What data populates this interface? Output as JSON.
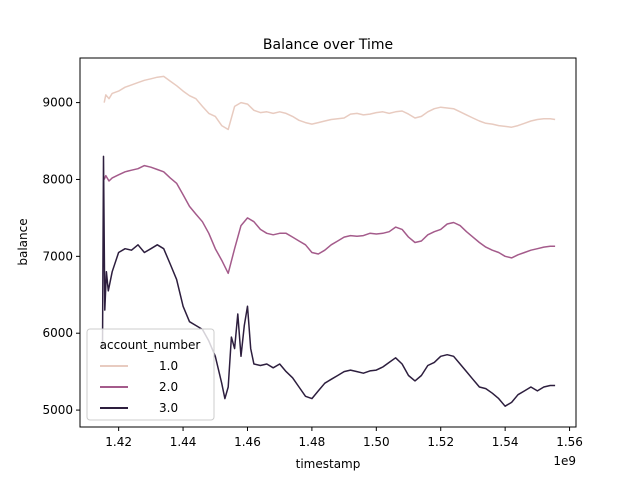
{
  "chart_data": {
    "type": "line",
    "title": "Balance over Time",
    "xlabel": "timestamp",
    "ylabel": "balance",
    "x_offset_text": "1e9",
    "xlim": [
      1.408,
      1.562
    ],
    "ylim": [
      4780,
      9580
    ],
    "x_ticks": [
      1.42,
      1.44,
      1.46,
      1.48,
      1.5,
      1.52,
      1.54,
      1.56
    ],
    "x_tick_labels": [
      "1.42",
      "1.44",
      "1.46",
      "1.48",
      "1.50",
      "1.52",
      "1.54",
      "1.56"
    ],
    "y_ticks": [
      5000,
      6000,
      7000,
      8000,
      9000
    ],
    "y_tick_labels": [
      "5000",
      "6000",
      "7000",
      "8000",
      "9000"
    ],
    "grid": false,
    "legend": {
      "title": "account_number",
      "position": "lower-left"
    },
    "series": [
      {
        "name": "1.0",
        "color": "#e8cbc0",
        "points": [
          [
            1.4155,
            9000
          ],
          [
            1.416,
            9100
          ],
          [
            1.417,
            9050
          ],
          [
            1.418,
            9120
          ],
          [
            1.42,
            9150
          ],
          [
            1.422,
            9200
          ],
          [
            1.424,
            9230
          ],
          [
            1.426,
            9260
          ],
          [
            1.428,
            9290
          ],
          [
            1.43,
            9310
          ],
          [
            1.432,
            9330
          ],
          [
            1.434,
            9340
          ],
          [
            1.436,
            9280
          ],
          [
            1.438,
            9220
          ],
          [
            1.44,
            9150
          ],
          [
            1.442,
            9090
          ],
          [
            1.444,
            9050
          ],
          [
            1.446,
            8950
          ],
          [
            1.448,
            8860
          ],
          [
            1.45,
            8820
          ],
          [
            1.452,
            8700
          ],
          [
            1.454,
            8650
          ],
          [
            1.456,
            8950
          ],
          [
            1.458,
            9000
          ],
          [
            1.46,
            8980
          ],
          [
            1.462,
            8900
          ],
          [
            1.464,
            8870
          ],
          [
            1.466,
            8880
          ],
          [
            1.468,
            8860
          ],
          [
            1.47,
            8880
          ],
          [
            1.472,
            8860
          ],
          [
            1.474,
            8820
          ],
          [
            1.476,
            8770
          ],
          [
            1.478,
            8740
          ],
          [
            1.48,
            8720
          ],
          [
            1.482,
            8740
          ],
          [
            1.484,
            8760
          ],
          [
            1.486,
            8780
          ],
          [
            1.488,
            8790
          ],
          [
            1.49,
            8800
          ],
          [
            1.492,
            8850
          ],
          [
            1.494,
            8860
          ],
          [
            1.496,
            8840
          ],
          [
            1.498,
            8850
          ],
          [
            1.5,
            8870
          ],
          [
            1.502,
            8880
          ],
          [
            1.504,
            8860
          ],
          [
            1.506,
            8880
          ],
          [
            1.508,
            8890
          ],
          [
            1.51,
            8850
          ],
          [
            1.512,
            8800
          ],
          [
            1.514,
            8820
          ],
          [
            1.516,
            8880
          ],
          [
            1.518,
            8920
          ],
          [
            1.52,
            8940
          ],
          [
            1.522,
            8930
          ],
          [
            1.524,
            8920
          ],
          [
            1.526,
            8880
          ],
          [
            1.528,
            8840
          ],
          [
            1.53,
            8800
          ],
          [
            1.532,
            8760
          ],
          [
            1.534,
            8730
          ],
          [
            1.536,
            8720
          ],
          [
            1.538,
            8700
          ],
          [
            1.54,
            8690
          ],
          [
            1.542,
            8680
          ],
          [
            1.544,
            8700
          ],
          [
            1.546,
            8730
          ],
          [
            1.548,
            8760
          ],
          [
            1.55,
            8780
          ],
          [
            1.552,
            8790
          ],
          [
            1.554,
            8790
          ],
          [
            1.5555,
            8780
          ]
        ]
      },
      {
        "name": "2.0",
        "color": "#a45b8b",
        "points": [
          [
            1.4155,
            8000
          ],
          [
            1.416,
            8050
          ],
          [
            1.417,
            7980
          ],
          [
            1.418,
            8020
          ],
          [
            1.42,
            8060
          ],
          [
            1.422,
            8100
          ],
          [
            1.424,
            8120
          ],
          [
            1.426,
            8140
          ],
          [
            1.428,
            8180
          ],
          [
            1.43,
            8160
          ],
          [
            1.432,
            8130
          ],
          [
            1.434,
            8100
          ],
          [
            1.436,
            8020
          ],
          [
            1.438,
            7950
          ],
          [
            1.44,
            7800
          ],
          [
            1.442,
            7650
          ],
          [
            1.444,
            7550
          ],
          [
            1.446,
            7450
          ],
          [
            1.448,
            7300
          ],
          [
            1.45,
            7100
          ],
          [
            1.452,
            6950
          ],
          [
            1.454,
            6780
          ],
          [
            1.456,
            7100
          ],
          [
            1.458,
            7400
          ],
          [
            1.46,
            7500
          ],
          [
            1.462,
            7450
          ],
          [
            1.464,
            7350
          ],
          [
            1.466,
            7300
          ],
          [
            1.468,
            7280
          ],
          [
            1.47,
            7300
          ],
          [
            1.472,
            7300
          ],
          [
            1.474,
            7250
          ],
          [
            1.476,
            7200
          ],
          [
            1.478,
            7150
          ],
          [
            1.48,
            7050
          ],
          [
            1.482,
            7030
          ],
          [
            1.484,
            7080
          ],
          [
            1.486,
            7150
          ],
          [
            1.488,
            7200
          ],
          [
            1.49,
            7250
          ],
          [
            1.492,
            7270
          ],
          [
            1.494,
            7260
          ],
          [
            1.496,
            7270
          ],
          [
            1.498,
            7300
          ],
          [
            1.5,
            7290
          ],
          [
            1.502,
            7300
          ],
          [
            1.504,
            7320
          ],
          [
            1.506,
            7380
          ],
          [
            1.508,
            7350
          ],
          [
            1.51,
            7250
          ],
          [
            1.512,
            7180
          ],
          [
            1.514,
            7200
          ],
          [
            1.516,
            7280
          ],
          [
            1.518,
            7320
          ],
          [
            1.52,
            7350
          ],
          [
            1.522,
            7420
          ],
          [
            1.524,
            7440
          ],
          [
            1.526,
            7400
          ],
          [
            1.528,
            7320
          ],
          [
            1.53,
            7250
          ],
          [
            1.532,
            7180
          ],
          [
            1.534,
            7120
          ],
          [
            1.536,
            7080
          ],
          [
            1.538,
            7050
          ],
          [
            1.54,
            7000
          ],
          [
            1.542,
            6980
          ],
          [
            1.544,
            7020
          ],
          [
            1.546,
            7050
          ],
          [
            1.548,
            7080
          ],
          [
            1.55,
            7100
          ],
          [
            1.552,
            7120
          ],
          [
            1.554,
            7130
          ],
          [
            1.5555,
            7130
          ]
        ]
      },
      {
        "name": "3.0",
        "color": "#2d1e3e",
        "points": [
          [
            1.415,
            5800
          ],
          [
            1.4153,
            8300
          ],
          [
            1.4157,
            6300
          ],
          [
            1.4162,
            6800
          ],
          [
            1.4168,
            6550
          ],
          [
            1.418,
            6800
          ],
          [
            1.42,
            7050
          ],
          [
            1.422,
            7100
          ],
          [
            1.424,
            7080
          ],
          [
            1.426,
            7150
          ],
          [
            1.428,
            7050
          ],
          [
            1.43,
            7100
          ],
          [
            1.432,
            7150
          ],
          [
            1.434,
            7100
          ],
          [
            1.436,
            6900
          ],
          [
            1.438,
            6700
          ],
          [
            1.44,
            6350
          ],
          [
            1.442,
            6150
          ],
          [
            1.444,
            6100
          ],
          [
            1.446,
            6050
          ],
          [
            1.448,
            5900
          ],
          [
            1.45,
            5700
          ],
          [
            1.452,
            5350
          ],
          [
            1.453,
            5150
          ],
          [
            1.454,
            5300
          ],
          [
            1.455,
            5950
          ],
          [
            1.456,
            5800
          ],
          [
            1.457,
            6250
          ],
          [
            1.458,
            5700
          ],
          [
            1.459,
            6100
          ],
          [
            1.46,
            6350
          ],
          [
            1.461,
            5800
          ],
          [
            1.462,
            5600
          ],
          [
            1.464,
            5580
          ],
          [
            1.466,
            5600
          ],
          [
            1.468,
            5550
          ],
          [
            1.47,
            5600
          ],
          [
            1.472,
            5500
          ],
          [
            1.474,
            5420
          ],
          [
            1.476,
            5300
          ],
          [
            1.478,
            5180
          ],
          [
            1.48,
            5150
          ],
          [
            1.482,
            5250
          ],
          [
            1.484,
            5350
          ],
          [
            1.486,
            5400
          ],
          [
            1.488,
            5450
          ],
          [
            1.49,
            5500
          ],
          [
            1.492,
            5520
          ],
          [
            1.494,
            5500
          ],
          [
            1.496,
            5480
          ],
          [
            1.498,
            5510
          ],
          [
            1.5,
            5520
          ],
          [
            1.502,
            5560
          ],
          [
            1.504,
            5620
          ],
          [
            1.506,
            5680
          ],
          [
            1.508,
            5600
          ],
          [
            1.51,
            5450
          ],
          [
            1.512,
            5380
          ],
          [
            1.514,
            5450
          ],
          [
            1.516,
            5580
          ],
          [
            1.518,
            5620
          ],
          [
            1.52,
            5700
          ],
          [
            1.522,
            5720
          ],
          [
            1.524,
            5700
          ],
          [
            1.526,
            5600
          ],
          [
            1.528,
            5500
          ],
          [
            1.53,
            5400
          ],
          [
            1.532,
            5300
          ],
          [
            1.534,
            5280
          ],
          [
            1.536,
            5220
          ],
          [
            1.538,
            5150
          ],
          [
            1.54,
            5050
          ],
          [
            1.542,
            5100
          ],
          [
            1.544,
            5200
          ],
          [
            1.546,
            5250
          ],
          [
            1.548,
            5300
          ],
          [
            1.55,
            5250
          ],
          [
            1.552,
            5300
          ],
          [
            1.554,
            5320
          ],
          [
            1.5555,
            5320
          ]
        ]
      }
    ]
  }
}
